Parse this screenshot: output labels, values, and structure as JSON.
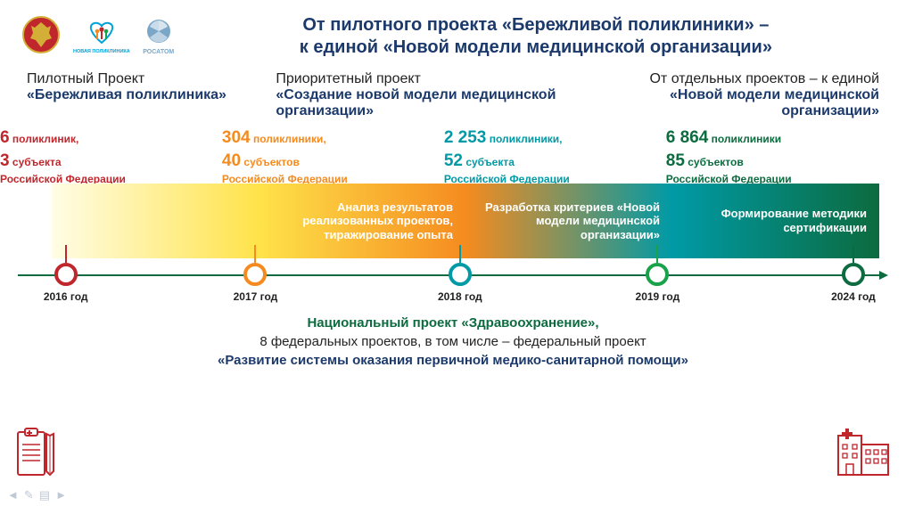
{
  "title_line1": "От пилотного проекта «Бережливой поликлиники» –",
  "title_line2": "к единой «Новой модели медицинской организации»",
  "colors": {
    "navy": "#1b3a6b",
    "red": "#c0272d",
    "orange": "#f58b1f",
    "teal": "#009aa6",
    "green_dark": "#0c6b3f",
    "green": "#1aa24a",
    "yellow": "#ffe34a"
  },
  "phases": [
    {
      "name": "Пилотный Проект",
      "quote": "«Бережливая поликлиника»",
      "align": "left"
    },
    {
      "name": "Приоритетный проект",
      "quote": "«Создание новой модели медицинской организации»",
      "align": "left"
    },
    {
      "name": "От отдельных проектов – к единой",
      "quote": "«Новой модели медицинской организации»",
      "align": "right"
    }
  ],
  "stats": [
    {
      "n1": "6",
      "t1": "поликлиник,",
      "n2": "3",
      "t2": "субъекта",
      "t3": "Российской Федерации",
      "color": "#c0272d",
      "left_pct": 0
    },
    {
      "n1": "304",
      "t1": "поликлиники,",
      "n2": "40",
      "t2": "субъектов",
      "t3": "Российской Федерации",
      "color": "#f58b1f",
      "left_pct": 24.5
    },
    {
      "n1": "2 253",
      "t1": "поликлиники,",
      "n2": "52",
      "t2": "субъекта",
      "t3": "Российской Федерации",
      "color": "#009aa6",
      "left_pct": 49
    },
    {
      "n1": "6 864",
      "t1": "поликлиники",
      "n2": "85",
      "t2": "субъектов",
      "t3": "Российской Федерации",
      "color": "#0c6b3f",
      "left_pct": 73.5
    }
  ],
  "segments": [
    {
      "text": "",
      "gradient": [
        "#fffde6",
        "#ffe34a"
      ]
    },
    {
      "text": "Анализ результатов реализованных проектов, тиражирование опыта",
      "gradient": [
        "#ffe34a",
        "#f58b1f"
      ]
    },
    {
      "text": "Разработка критериев «Новой модели медицинской организации»",
      "gradient": [
        "#f58b1f",
        "#009aa6"
      ]
    },
    {
      "text": "Формирование методики сертификации",
      "gradient": [
        "#009aa6",
        "#0c6b3f"
      ]
    }
  ],
  "timeline": {
    "nodes": [
      {
        "year": "2016 год",
        "color": "#c0272d",
        "pos_pct": 5.5
      },
      {
        "year": "2017 год",
        "color": "#f58b1f",
        "pos_pct": 27.3
      },
      {
        "year": "2018 год",
        "color": "#009aa6",
        "pos_pct": 50.8
      },
      {
        "year": "2019 год",
        "color": "#1aa24a",
        "pos_pct": 73.5
      },
      {
        "year": "2024 год",
        "color": "#0c6b3f",
        "pos_pct": 96
      }
    ]
  },
  "footer": {
    "l1": "Национальный  проект «Здравоохранение»,",
    "l2": "8 федеральных проектов, в том числе – федеральный проект",
    "l3": "«Развитие системы оказания первичной медико-санитарной  помощи»"
  },
  "logos": {
    "eagle_label": "eagle-emblem",
    "heart_label": "НОВАЯ ПОЛИКЛИНИКА",
    "rosatom_label": "РОСАТОМ"
  }
}
